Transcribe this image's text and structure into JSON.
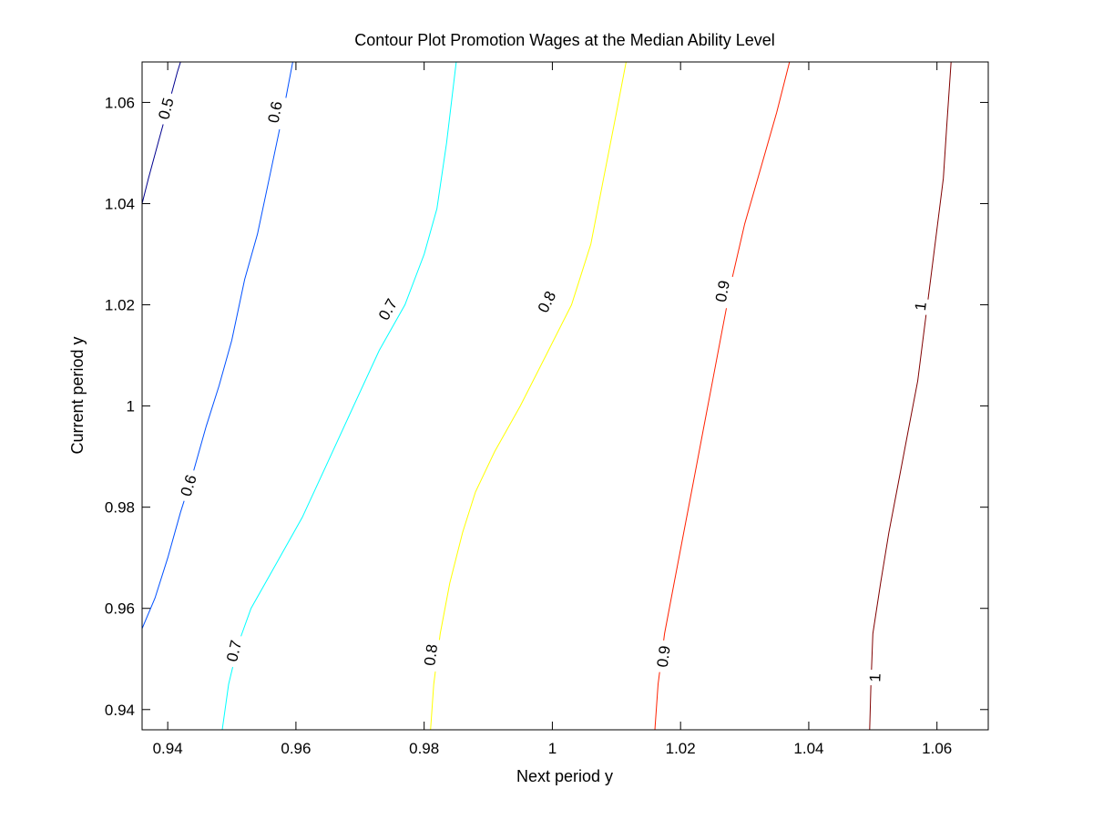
{
  "chart_data": {
    "type": "contour",
    "title": "Contour Plot Promotion Wages at the Median Ability Level",
    "xlabel": "Next period y",
    "ylabel": "Current period y",
    "xlim": [
      0.936,
      1.068
    ],
    "ylim": [
      0.936,
      1.068
    ],
    "xticks": [
      0.94,
      0.96,
      0.98,
      1.0,
      1.02,
      1.04,
      1.06
    ],
    "xtick_labels": [
      "0.94",
      "0.96",
      "0.98",
      "1",
      "1.02",
      "1.04",
      "1.06"
    ],
    "yticks": [
      0.94,
      0.96,
      0.98,
      1.0,
      1.02,
      1.04,
      1.06
    ],
    "ytick_labels": [
      "0.94",
      "0.96",
      "0.98",
      "1",
      "1.02",
      "1.04",
      "1.06"
    ],
    "grid": false,
    "contours": [
      {
        "level": "0.5",
        "color": "#00008f",
        "points": [
          [
            0.936,
            1.04
          ],
          [
            0.937,
            1.045
          ],
          [
            0.9385,
            1.052
          ],
          [
            0.94,
            1.059
          ],
          [
            0.9415,
            1.066
          ],
          [
            0.942,
            1.068
          ]
        ],
        "labels": [
          {
            "x": 0.9397,
            "y": 1.0588,
            "text": "0.5"
          }
        ]
      },
      {
        "level": "0.6",
        "color": "#0050ff",
        "points": [
          [
            0.936,
            0.956
          ],
          [
            0.938,
            0.962
          ],
          [
            0.94,
            0.97
          ],
          [
            0.942,
            0.979
          ],
          [
            0.944,
            0.987
          ],
          [
            0.946,
            0.996
          ],
          [
            0.948,
            1.004
          ],
          [
            0.95,
            1.013
          ],
          [
            0.952,
            1.025
          ],
          [
            0.954,
            1.034
          ],
          [
            0.956,
            1.046
          ],
          [
            0.958,
            1.058
          ],
          [
            0.9595,
            1.068
          ]
        ],
        "labels": [
          {
            "x": 0.9432,
            "y": 0.9843,
            "text": "0.6"
          },
          {
            "x": 0.9567,
            "y": 1.0581,
            "text": "0.6"
          }
        ]
      },
      {
        "level": "0.7",
        "color": "#00ffff",
        "points": [
          [
            0.9485,
            0.936
          ],
          [
            0.9495,
            0.945
          ],
          [
            0.951,
            0.953
          ],
          [
            0.953,
            0.96
          ],
          [
            0.957,
            0.969
          ],
          [
            0.961,
            0.978
          ],
          [
            0.965,
            0.989
          ],
          [
            0.969,
            1.0
          ],
          [
            0.973,
            1.011
          ],
          [
            0.977,
            1.02
          ],
          [
            0.98,
            1.03
          ],
          [
            0.982,
            1.039
          ],
          [
            0.9835,
            1.052
          ],
          [
            0.985,
            1.068
          ]
        ],
        "labels": [
          {
            "x": 0.9503,
            "y": 0.9516,
            "text": "0.7"
          },
          {
            "x": 0.9743,
            "y": 1.0191,
            "text": "0.7"
          }
        ]
      },
      {
        "level": "0.8",
        "color": "#ffff00",
        "points": [
          [
            0.981,
            0.936
          ],
          [
            0.9815,
            0.945
          ],
          [
            0.9825,
            0.955
          ],
          [
            0.984,
            0.965
          ],
          [
            0.986,
            0.975
          ],
          [
            0.988,
            0.983
          ],
          [
            0.991,
            0.991
          ],
          [
            0.995,
            1.0
          ],
          [
            0.999,
            1.01
          ],
          [
            1.003,
            1.02
          ],
          [
            1.006,
            1.032
          ],
          [
            1.008,
            1.045
          ],
          [
            1.01,
            1.058
          ],
          [
            1.0115,
            1.068
          ]
        ],
        "labels": [
          {
            "x": 0.981,
            "y": 0.9508,
            "text": "0.8"
          },
          {
            "x": 0.9991,
            "y": 1.0206,
            "text": "0.8"
          }
        ]
      },
      {
        "level": "0.9",
        "color": "#ff2000",
        "points": [
          [
            1.016,
            0.936
          ],
          [
            1.0165,
            0.945
          ],
          [
            1.0175,
            0.955
          ],
          [
            1.019,
            0.965
          ],
          [
            1.0205,
            0.975
          ],
          [
            1.022,
            0.985
          ],
          [
            1.0235,
            0.995
          ],
          [
            1.025,
            1.005
          ],
          [
            1.0265,
            1.015
          ],
          [
            1.028,
            1.025
          ],
          [
            1.03,
            1.036
          ],
          [
            1.0325,
            1.047
          ],
          [
            1.035,
            1.058
          ],
          [
            1.037,
            1.068
          ]
        ],
        "labels": [
          {
            "x": 1.0173,
            "y": 0.9505,
            "text": "0.9"
          },
          {
            "x": 1.0265,
            "y": 1.0227,
            "text": "0.9"
          }
        ]
      },
      {
        "level": "1",
        "color": "#800000",
        "points": [
          [
            1.0495,
            0.936
          ],
          [
            1.0497,
            0.945
          ],
          [
            1.05,
            0.955
          ],
          [
            1.0512,
            0.965
          ],
          [
            1.0525,
            0.975
          ],
          [
            1.054,
            0.985
          ],
          [
            1.0555,
            0.995
          ],
          [
            1.057,
            1.005
          ],
          [
            1.058,
            1.015
          ],
          [
            1.059,
            1.025
          ],
          [
            1.06,
            1.035
          ],
          [
            1.061,
            1.045
          ],
          [
            1.0615,
            1.055
          ],
          [
            1.0622,
            1.068
          ]
        ],
        "labels": [
          {
            "x": 1.0503,
            "y": 0.9463,
            "text": "1"
          },
          {
            "x": 1.0574,
            "y": 1.0197,
            "text": "1"
          }
        ]
      }
    ]
  }
}
